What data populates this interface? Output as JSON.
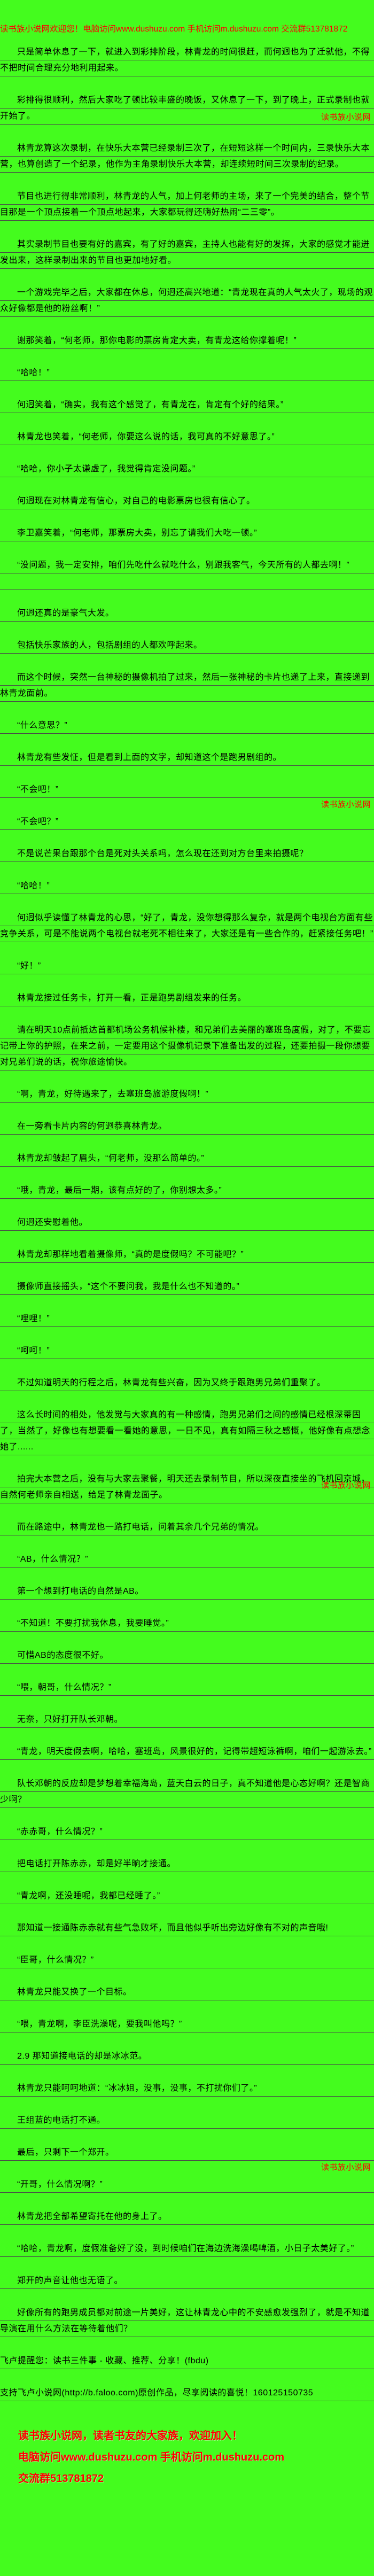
{
  "colors": {
    "background": "#44fc1e",
    "text": "#000000",
    "accent_red": "#fe0000",
    "underline": "#4a4a4a"
  },
  "header": {
    "welcome_line": "读书族小说网欢迎您！电脑访问www.dushuzu.com 手机访问m.dushuzu.com 交流群513781872"
  },
  "watermark_text": "读书族小说网",
  "paragraphs": [
    {
      "kind": "body",
      "text": "只是简单休息了一下，就进入到彩排阶段，林青龙的时间很赶，而何迥也为了迁就他，不得不把时间合理充分地利用起来。"
    },
    {
      "kind": "body",
      "text": "彩排得很顺利，然后大家吃了顿比较丰盛的晚饭，又休息了一下，到了晚上，正式录制也就开始了。",
      "marker": "读书族小说网",
      "marker_pos": "low"
    },
    {
      "kind": "body",
      "text": "林青龙算这次录制，在快乐大本营已经录制三次了，在短短这样一个时间内，三录快乐大本营，也算创造了一个纪录，他作为主角录制快乐大本营，却连续短时间三次录制的纪录。"
    },
    {
      "kind": "body",
      "text": "节目也进行得非常顺利，林青龙的人气，加上何老师的主场，来了一个完美的结合，整个节目那是一个顶点接着一个顶点地起来，大家都玩得还嗨好热闹“二三零”。"
    },
    {
      "kind": "body",
      "text": "其实录制节目也要有好的嘉宾，有了好的嘉宾，主持人也能有好的发挥，大家的感觉才能迸发出来，这样录制出来的节目也更加地好看。"
    },
    {
      "kind": "body",
      "text": "一个游戏完毕之后，大家都在休息，何迥还高兴地道：“青龙现在真的人气太火了，现场的观众好像都是他的粉丝啊！”"
    },
    {
      "kind": "body",
      "text": "谢那笑着，“何老师，那你电影的票房肯定大卖，有青龙这给你撑着呢！”"
    },
    {
      "kind": "body",
      "text": "“哈哈！”"
    },
    {
      "kind": "body",
      "text": "何迥笑着，“确实，我有这个感觉了，有青龙在，肯定有个好的结果。”"
    },
    {
      "kind": "body",
      "text": "林青龙也笑着，“何老师，你要这么说的话，我可真的不好意思了。”"
    },
    {
      "kind": "body",
      "text": "“哈哈，你小子太谦虚了，我觉得肯定没问题。”"
    },
    {
      "kind": "body",
      "text": "何迥现在对林青龙有信心，对自己的电影票房也很有信心了。"
    },
    {
      "kind": "body",
      "text": "李卫嘉笑着，“何老师，那票房大卖，别忘了请我们大吃一顿。”"
    },
    {
      "kind": "body",
      "text": "“没问题，我一定安排，咱们先吃什么就吃什么，别跟我客气，今天所有的人都去啊！”"
    },
    {
      "kind": "blank",
      "text": ""
    },
    {
      "kind": "body",
      "text": "何迥还真的是豪气大发。"
    },
    {
      "kind": "body",
      "text": "包括快乐家族的人，包括剧组的人都欢呼起来。"
    },
    {
      "kind": "body",
      "text": "而这个时候，突然一台神秘的摄像机拍了过来，然后一张神秘的卡片也递了上来，直接递到林青龙面前。"
    },
    {
      "kind": "body",
      "text": "“什么意思？”"
    },
    {
      "kind": "body",
      "text": "林青龙有些发怔，但是看到上面的文字，却知道这个是跑男剧组的。"
    },
    {
      "kind": "body",
      "text": "“不会吧！”"
    },
    {
      "kind": "marker",
      "text": "读书族小说网"
    },
    {
      "kind": "body",
      "text": "“不会吧？”"
    },
    {
      "kind": "body",
      "text": "不是说芒果台跟那个台是死对头关系吗，怎么现在还到对方台里来拍摄呢？"
    },
    {
      "kind": "body",
      "text": "“哈哈！”"
    },
    {
      "kind": "body",
      "text": "何迥似乎读懂了林青龙的心思，“好了，青龙，没你想得那么复杂，就是两个电视台方面有些竞争关系，可是不能说两个电视台就老死不相往来了，大家还是有一些合作的，赶紧接任务吧！”"
    },
    {
      "kind": "body",
      "text": "“好！”"
    },
    {
      "kind": "body",
      "text": "林青龙接过任务卡，打开一看，正是跑男剧组发来的任务。"
    },
    {
      "kind": "body",
      "text": "请在明天10点前抵达首都机场公务机候补楼，和兄弟们去美丽的塞班岛度假，对了，不要忘记带上你的护照，在来之前，一定要用这个摄像机记录下准备出发的过程，还要拍摄一段你想要对兄弟们说的话，祝你旅途愉快。"
    },
    {
      "kind": "body",
      "text": "“啊，青龙，好待遇来了，去塞班岛旅游度假啊！”"
    },
    {
      "kind": "body",
      "text": "在一旁看卡片内容的何迥恭喜林青龙。"
    },
    {
      "kind": "body",
      "text": "林青龙却皱起了眉头，“何老师，没那么简单的。”"
    },
    {
      "kind": "body",
      "text": "“哦，青龙，最后一期，该有点好的了，你别想太多。”"
    },
    {
      "kind": "body",
      "text": "何迥还安慰着他。"
    },
    {
      "kind": "body",
      "text": "林青龙却那样地看着摄像师，“真的是度假吗？不可能吧？”"
    },
    {
      "kind": "body",
      "text": "摄像师直接摇头，“这个不要问我，我是什么也不知道的。”"
    },
    {
      "kind": "body",
      "text": "“哩哩！”"
    },
    {
      "kind": "body",
      "text": "“呵呵！”"
    },
    {
      "kind": "body",
      "text": "不过知道明天的行程之后，林青龙有些兴奋，因为又终于跟跑男兄弟们重聚了。"
    },
    {
      "kind": "body",
      "text": "这么长时间的相处，他发觉与大家真的有一种感情，跑男兄弟们之间的感情已经根深蒂固了，当然了，好像也有想要看一看她的意思，一日不见，真有如隔三秋之感慨，他好像有点想念她了......"
    },
    {
      "kind": "body",
      "text": "拍完大本营之后，没有与大家去聚餐，明天还去录制节目，所以深夜直接坐的飞机回京城，自然何老师亲自相送，给足了林青龙面子。",
      "marker": "读书族小说网",
      "marker_pos": "mid"
    },
    {
      "kind": "body",
      "text": "而在路途中，林青龙也一路打电话，问着其余几个兄弟的情况。"
    },
    {
      "kind": "body",
      "text": "“AB，什么情况？”"
    },
    {
      "kind": "body",
      "text": "第一个想到打电话的自然是AB。"
    },
    {
      "kind": "body",
      "text": "“不知道！不要打扰我休息，我要睡觉。”"
    },
    {
      "kind": "body",
      "text": "可惜AB的态度很不好。"
    },
    {
      "kind": "body",
      "text": "“喂，朝哥，什么情况？”"
    },
    {
      "kind": "body",
      "text": "无奈，只好打开队长邓朝。"
    },
    {
      "kind": "body",
      "text": "“青龙，明天度假去啊，哈哈，塞班岛，风景很好的，记得带超短泳裤啊，咱们一起游泳去。”"
    },
    {
      "kind": "body",
      "text": "队长邓朝的反应却是梦想着幸福海岛，蓝天白云的日子，真不知道他是心态好啊？还是智商少啊？"
    },
    {
      "kind": "body",
      "text": "“赤赤哥，什么情况？”"
    },
    {
      "kind": "body",
      "text": "把电话打开陈赤赤，却是好半晌才接通。"
    },
    {
      "kind": "body",
      "text": "“青龙啊，还没睡呢，我都已经睡了。”"
    },
    {
      "kind": "body",
      "text": "那知道一接通陈赤赤就有些气急败坏，而且他似乎听出旁边好像有不对的声音哦!"
    },
    {
      "kind": "body",
      "text": "“臣哥，什么情况？”"
    },
    {
      "kind": "body",
      "text": "林青龙只能又换了一个目标。"
    },
    {
      "kind": "body",
      "text": "“喂，青龙啊，李臣洗澡呢，要我叫他吗？”"
    },
    {
      "kind": "body",
      "text": "2.9  那知道接电话的却是冰冰范。"
    },
    {
      "kind": "body",
      "text": "林青龙只能呵呵地道：“冰冰姐，没事，没事，不打扰你们了。”"
    },
    {
      "kind": "body",
      "text": "王组蓝的电话打不通。"
    },
    {
      "kind": "body",
      "text": "最后，只剩下一个郑开。"
    },
    {
      "kind": "marker",
      "text": "读书族小说网"
    },
    {
      "kind": "body",
      "text": "“开哥，什么情况啊？”"
    },
    {
      "kind": "body",
      "text": "林青龙把全部希望寄托在他的身上了。"
    },
    {
      "kind": "body",
      "text": "“哈哈，青龙啊，度假准备好了没，到时候咱们在海边洗海澡喝啤酒，小日子太美好了。”"
    },
    {
      "kind": "body",
      "text": "郑开的声音让他也无语了。"
    },
    {
      "kind": "body",
      "text": "好像所有的跑男成员都对前途一片美好，这让林青龙心中的不安感愈发强烈了，就是不知道导演在用什么方法在等待着他们？"
    },
    {
      "kind": "flush",
      "text": "飞卢提醒您：读书三件事 - 收藏、推荐、分享！(fbdu)"
    },
    {
      "kind": "flush",
      "text": "支持飞卢小说网(http://b.faloo.com)原创作品，尽享阅读的喜悦！160125150735"
    }
  ],
  "footer": {
    "join_line": "读书族小说网，读者书友的大家族，欢迎加入！",
    "access_line": "电脑访问www.dushuzu.com 手机访问m.dushuzu.com",
    "qq_line": "交流群513781872"
  }
}
